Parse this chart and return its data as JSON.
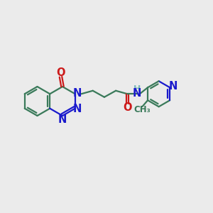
{
  "bg_color": "#ebebeb",
  "bond_color": "#3a7a5a",
  "N_color": "#1a1acc",
  "O_color": "#cc1a1a",
  "H_color": "#7ab8b8",
  "line_width": 1.6,
  "font_size": 10.5,
  "fig_size": [
    3.0,
    3.0
  ],
  "dpi": 100,
  "xlim": [
    0,
    12
  ],
  "ylim": [
    0,
    10
  ]
}
